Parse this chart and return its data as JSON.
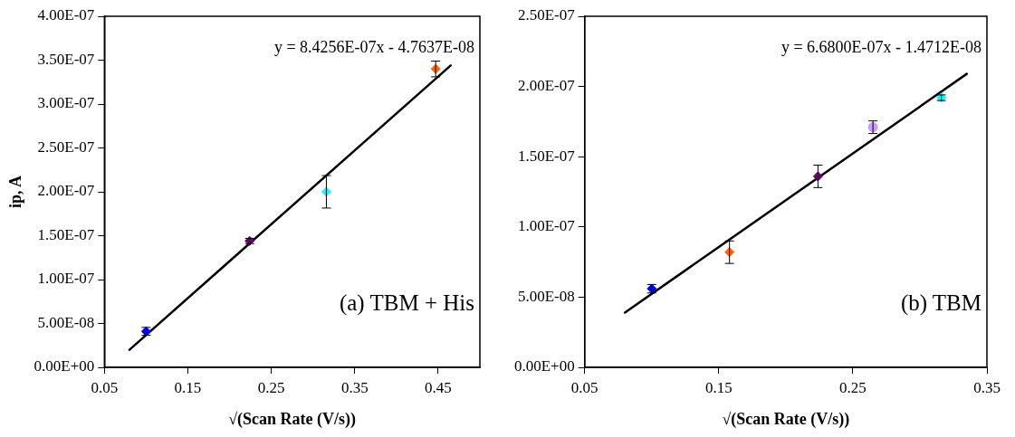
{
  "chart_data": [
    {
      "type": "scatter",
      "xlabel": "√(Scan Rate (V/s))",
      "ylabel": "ip, A",
      "xlim": [
        0.05,
        0.5
      ],
      "xticks": [
        0.05,
        0.15,
        0.25,
        0.35,
        0.45
      ],
      "ylim": [
        0,
        4e-07
      ],
      "yticks": [
        {
          "value": 0,
          "label": "0.00E+00"
        },
        {
          "value": 5e-08,
          "label": "5.00E-08"
        },
        {
          "value": 1e-07,
          "label": "1.00E-07"
        },
        {
          "value": 1.5e-07,
          "label": "1.50E-07"
        },
        {
          "value": 2e-07,
          "label": "2.00E-07"
        },
        {
          "value": 2.5e-07,
          "label": "2.50E-07"
        },
        {
          "value": 3e-07,
          "label": "3.00E-07"
        },
        {
          "value": 3.5e-07,
          "label": "3.50E-07"
        },
        {
          "value": 4e-07,
          "label": "4.00E-07"
        }
      ],
      "grid": false,
      "legend": false,
      "marker": "diamond",
      "annotations": [
        "y = 8.4256E-07x - 4.7637E-08",
        "(a) TBM + His"
      ],
      "series": [
        {
          "type": "scatter",
          "x": [
            0.1,
            0.224,
            0.316,
            0.447
          ],
          "values": [
            4.1e-08,
            1.44e-07,
            2e-07,
            3.4e-07
          ],
          "errors": [
            4.5e-09,
            3e-09,
            1.85e-08,
            9e-09
          ],
          "colors": [
            "#0000ff",
            "#660066",
            "#00ffff",
            "#ff6600"
          ]
        },
        {
          "type": "line",
          "x": [
            0.08,
            0.465
          ],
          "values": [
            2e-08,
            3.44e-07
          ],
          "color": "#000000",
          "marker": "none",
          "line_style": "solid"
        }
      ]
    },
    {
      "type": "scatter",
      "xlabel": "√(Scan Rate (V/s))",
      "xlim": [
        0.05,
        0.35
      ],
      "xticks": [
        0.05,
        0.15,
        0.25,
        0.35
      ],
      "ylim": [
        0,
        2.5e-07
      ],
      "yticks": [
        {
          "value": 0,
          "label": "0.00E+00"
        },
        {
          "value": 5e-08,
          "label": "5.00E-08"
        },
        {
          "value": 1e-07,
          "label": "1.00E-07"
        },
        {
          "value": 1.5e-07,
          "label": "1.50E-07"
        },
        {
          "value": 2e-07,
          "label": "2.00E-07"
        },
        {
          "value": 2.5e-07,
          "label": "2.50E-07"
        }
      ],
      "grid": false,
      "legend": false,
      "marker": "diamond",
      "annotations": [
        "y = 6.6800E-07x - 1.4712E-08",
        "(b) TBM"
      ],
      "series": [
        {
          "type": "scatter",
          "x": [
            0.1,
            0.158,
            0.224,
            0.316
          ],
          "values": [
            5.6e-08,
            8.2e-08,
            1.36e-07,
            1.92e-07
          ],
          "errors": [
            3e-09,
            8e-09,
            8e-09,
            2e-09
          ],
          "colors": [
            "#0000ff",
            "#ff6600",
            "#660066",
            "#00ffff"
          ]
        },
        {
          "type": "scatter",
          "x": [
            0.265
          ],
          "values": [
            1.71e-07
          ],
          "errors": [
            4.5e-09
          ],
          "colors": [
            "#cc99ff"
          ],
          "marker": "circle"
        },
        {
          "type": "line",
          "x": [
            0.08,
            0.335
          ],
          "values": [
            3.9e-08,
            2.09e-07
          ],
          "color": "#000000",
          "marker": "none",
          "line_style": "solid"
        }
      ]
    }
  ]
}
